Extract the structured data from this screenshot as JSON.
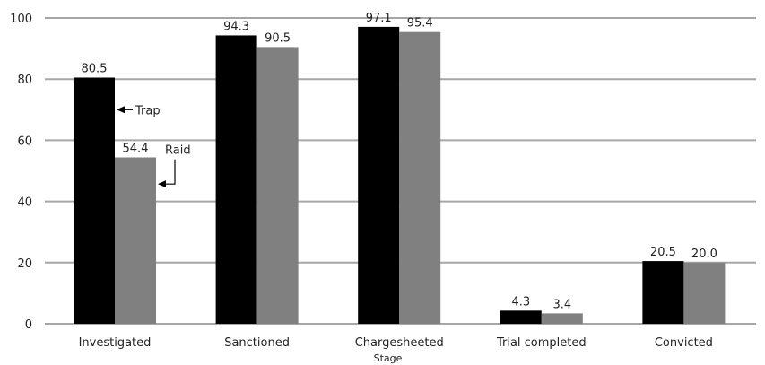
{
  "chart_data": {
    "type": "bar",
    "categories": [
      "Investigated",
      "Sanctioned",
      "Chargesheeted",
      "Trial completed",
      "Convicted"
    ],
    "series": [
      {
        "name": "Trap",
        "values": [
          80.5,
          94.3,
          97.1,
          4.3,
          20.5
        ],
        "color": "#000000"
      },
      {
        "name": "Raid",
        "values": [
          54.4,
          90.5,
          95.4,
          3.4,
          20.0
        ],
        "color": "#808080"
      }
    ],
    "data_labels": [
      [
        "80.5",
        "94.3",
        "97.1",
        "4.3",
        "20.5"
      ],
      [
        "54.4",
        "90.5",
        "95.4",
        "3.4",
        "20.0"
      ]
    ],
    "yticks": [
      "0",
      "20",
      "40",
      "60",
      "80",
      "100"
    ],
    "ylim": [
      0,
      100
    ],
    "xlabel": "Stage",
    "ylabel": "",
    "grid": "horizontal",
    "legend": "inline arrow annotations on first category",
    "annotations": [
      {
        "text": "Trap",
        "series": 0,
        "category": 0
      },
      {
        "text": "Raid",
        "series": 1,
        "category": 0
      }
    ],
    "gridline_color": "#a6a6a6"
  }
}
